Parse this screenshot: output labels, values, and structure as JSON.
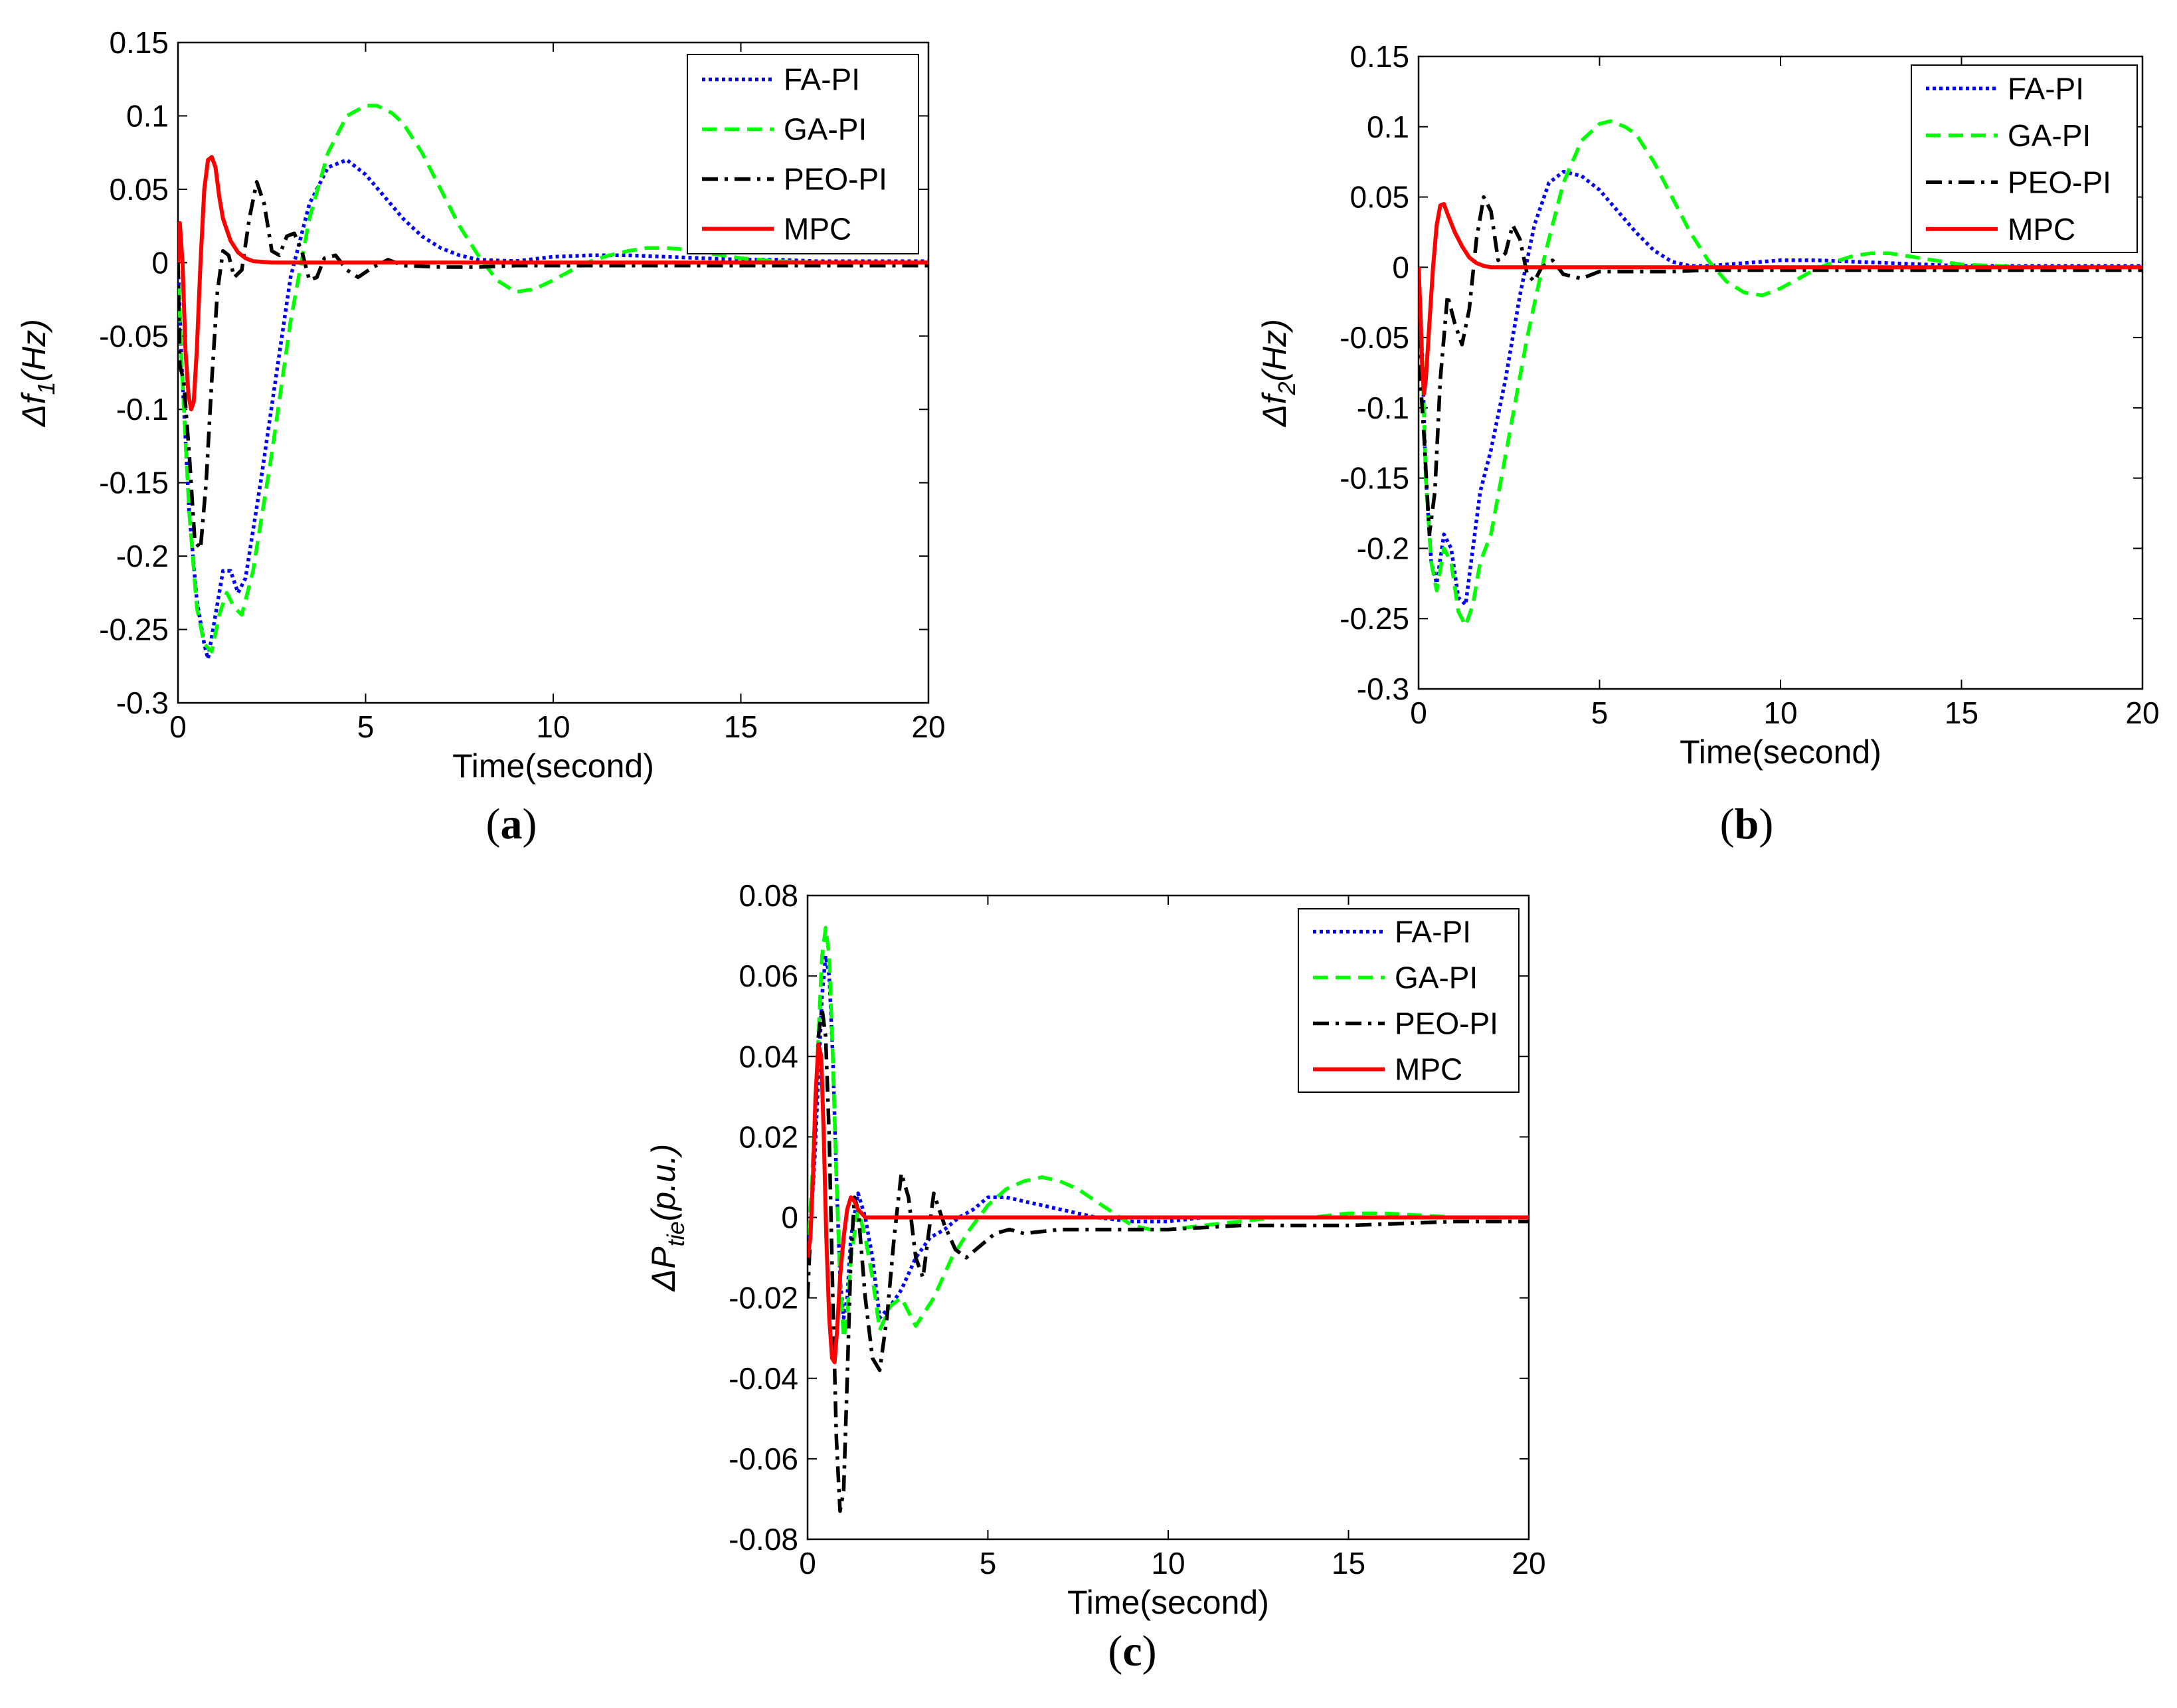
{
  "colors": {
    "FA-PI": "#0000ff",
    "GA-PI": "#00ff00",
    "PEO-PI": "#000000",
    "MPC": "#ff0000"
  },
  "chart_data": [
    {
      "type": "line",
      "panel": "(a)",
      "panel_letter": "a",
      "xlabel": "Time(second)",
      "ylabel_main": "Δf",
      "ylabel_sub": "1",
      "ylabel_rest": "(Hz)",
      "xlim": [
        0,
        20
      ],
      "ylim": [
        -0.3,
        0.15
      ],
      "xticks": [
        0,
        5,
        10,
        15,
        20
      ],
      "xtick_labels": [
        "0",
        "5",
        "10",
        "15",
        "20"
      ],
      "yticks": [
        -0.3,
        -0.25,
        -0.2,
        -0.15,
        -0.1,
        -0.05,
        0,
        0.05,
        0.1,
        0.15
      ],
      "ytick_labels": [
        "-0.3",
        "-0.25",
        "-0.2",
        "-0.15",
        "-0.1",
        "-0.05",
        "0",
        "0.05",
        "0.1",
        "0.15"
      ],
      "legend": [
        "FA-PI",
        "GA-PI",
        "PEO-PI",
        "MPC"
      ],
      "legend_loc": "top-right",
      "series": [
        {
          "name": "FA-PI",
          "style": "dotted",
          "x": [
            0,
            0.1,
            0.3,
            0.5,
            0.7,
            0.8,
            1.0,
            1.2,
            1.4,
            1.6,
            1.8,
            2.2,
            2.6,
            3.0,
            3.5,
            4.0,
            4.5,
            5.0,
            5.5,
            6.0,
            6.5,
            7.0,
            7.5,
            8.0,
            9.0,
            10.0,
            11.0,
            12.0,
            13.0,
            14.0,
            15.0,
            16.0,
            17.0,
            18.0,
            19.0,
            20.0
          ],
          "y": [
            0,
            -0.07,
            -0.17,
            -0.23,
            -0.26,
            -0.27,
            -0.24,
            -0.21,
            -0.21,
            -0.225,
            -0.215,
            -0.15,
            -0.08,
            -0.01,
            0.04,
            0.065,
            0.07,
            0.06,
            0.045,
            0.03,
            0.018,
            0.01,
            0.005,
            0.002,
            0.001,
            0.004,
            0.005,
            0.005,
            0.004,
            0.003,
            0.002,
            0.002,
            0.001,
            0.001,
            0.001,
            0.001
          ]
        },
        {
          "name": "GA-PI",
          "style": "dashed",
          "x": [
            0,
            0.1,
            0.3,
            0.5,
            0.7,
            0.9,
            1.1,
            1.3,
            1.5,
            1.7,
            2.0,
            2.5,
            3.0,
            3.5,
            4.0,
            4.5,
            5.0,
            5.3,
            5.7,
            6.0,
            6.5,
            7.0,
            7.5,
            8.0,
            8.5,
            9.0,
            9.5,
            10.0,
            10.5,
            11.0,
            11.5,
            12.0,
            12.5,
            13.0,
            13.5,
            14.0,
            14.5,
            15.0,
            16.0,
            17.0,
            18.0,
            19.0,
            20.0
          ],
          "y": [
            0,
            -0.07,
            -0.17,
            -0.235,
            -0.26,
            -0.265,
            -0.24,
            -0.225,
            -0.235,
            -0.24,
            -0.21,
            -0.13,
            -0.04,
            0.03,
            0.075,
            0.1,
            0.107,
            0.107,
            0.102,
            0.095,
            0.075,
            0.05,
            0.025,
            0.005,
            -0.012,
            -0.02,
            -0.018,
            -0.012,
            -0.005,
            0.001,
            0.005,
            0.008,
            0.01,
            0.01,
            0.009,
            0.007,
            0.005,
            0.003,
            0.001,
            0,
            0,
            0,
            0
          ]
        },
        {
          "name": "PEO-PI",
          "style": "dashdot",
          "x": [
            0,
            0.05,
            0.15,
            0.3,
            0.45,
            0.6,
            0.75,
            0.9,
            1.05,
            1.2,
            1.35,
            1.5,
            1.7,
            1.9,
            2.1,
            2.3,
            2.5,
            2.7,
            2.9,
            3.1,
            3.3,
            3.5,
            3.7,
            3.9,
            4.2,
            4.5,
            4.8,
            5.2,
            5.6,
            6.0,
            7.0,
            8.0,
            9.0,
            10.0,
            12.0,
            14.0,
            16.0,
            18.0,
            20.0
          ],
          "y": [
            0,
            -0.07,
            -0.08,
            -0.13,
            -0.19,
            -0.195,
            -0.15,
            -0.08,
            -0.02,
            0.008,
            0.005,
            -0.01,
            -0.005,
            0.03,
            0.055,
            0.04,
            0.008,
            0.005,
            0.018,
            0.02,
            0.008,
            -0.012,
            -0.01,
            0.003,
            0.005,
            -0.005,
            -0.01,
            -0.003,
            0.002,
            -0.002,
            -0.003,
            -0.003,
            -0.002,
            -0.002,
            -0.002,
            -0.002,
            -0.002,
            -0.002,
            -0.002
          ]
        },
        {
          "name": "MPC",
          "style": "solid",
          "x": [
            0,
            0.05,
            0.12,
            0.2,
            0.28,
            0.35,
            0.42,
            0.5,
            0.6,
            0.7,
            0.8,
            0.9,
            1.0,
            1.1,
            1.2,
            1.4,
            1.6,
            1.8,
            2.0,
            2.5,
            3.0,
            4.0,
            5.0,
            20.0
          ],
          "y": [
            0,
            0.027,
            0.0,
            -0.06,
            -0.09,
            -0.1,
            -0.095,
            -0.06,
            0.0,
            0.05,
            0.07,
            0.072,
            0.065,
            0.045,
            0.03,
            0.015,
            0.007,
            0.003,
            0.001,
            0,
            0,
            0,
            0,
            0
          ]
        }
      ]
    },
    {
      "type": "line",
      "panel": "(b)",
      "panel_letter": "b",
      "xlabel": "Time(second)",
      "ylabel_main": "Δf",
      "ylabel_sub": "2",
      "ylabel_rest": "(Hz)",
      "xlim": [
        0,
        20
      ],
      "ylim": [
        -0.3,
        0.15
      ],
      "xticks": [
        0,
        5,
        10,
        15,
        20
      ],
      "xtick_labels": [
        "0",
        "5",
        "10",
        "15",
        "20"
      ],
      "yticks": [
        -0.3,
        -0.25,
        -0.2,
        -0.15,
        -0.1,
        -0.05,
        0,
        0.05,
        0.1,
        0.15
      ],
      "ytick_labels": [
        "-0.3",
        "-0.25",
        "-0.2",
        "-0.15",
        "-0.1",
        "-0.05",
        "0",
        "0.05",
        "0.1",
        "0.15"
      ],
      "legend": [
        "FA-PI",
        "GA-PI",
        "PEO-PI",
        "MPC"
      ],
      "legend_loc": "top-right",
      "series": [
        {
          "name": "FA-PI",
          "style": "dotted",
          "x": [
            0,
            0.1,
            0.2,
            0.35,
            0.5,
            0.7,
            0.9,
            1.1,
            1.3,
            1.5,
            1.7,
            2.0,
            2.4,
            2.8,
            3.2,
            3.6,
            4.0,
            4.5,
            5.0,
            5.5,
            6.0,
            6.5,
            7.0,
            7.5,
            8.0,
            9.0,
            10.0,
            11.0,
            12.0,
            13.0,
            14.0,
            15.0,
            16.0,
            17.0,
            18.0,
            19.0,
            20.0
          ],
          "y": [
            0,
            -0.06,
            -0.15,
            -0.21,
            -0.225,
            -0.19,
            -0.2,
            -0.235,
            -0.24,
            -0.2,
            -0.16,
            -0.13,
            -0.08,
            -0.02,
            0.03,
            0.06,
            0.068,
            0.065,
            0.055,
            0.04,
            0.025,
            0.012,
            0.004,
            0.001,
            0.001,
            0.003,
            0.005,
            0.005,
            0.004,
            0.003,
            0.002,
            0.001,
            0.001,
            0.001,
            0.001,
            0.001,
            0.001
          ]
        },
        {
          "name": "GA-PI",
          "style": "dashed",
          "x": [
            0,
            0.1,
            0.2,
            0.35,
            0.5,
            0.7,
            0.9,
            1.1,
            1.3,
            1.5,
            1.7,
            2.0,
            2.5,
            3.0,
            3.5,
            4.0,
            4.5,
            5.0,
            5.3,
            5.7,
            6.0,
            6.5,
            7.0,
            7.5,
            8.0,
            8.5,
            9.0,
            9.5,
            10.0,
            10.5,
            11.0,
            11.5,
            12.0,
            12.5,
            13.0,
            13.5,
            14.0,
            14.5,
            15.0,
            16.0,
            17.0,
            18.0,
            19.0,
            20.0
          ],
          "y": [
            0,
            -0.06,
            -0.15,
            -0.21,
            -0.23,
            -0.2,
            -0.21,
            -0.245,
            -0.255,
            -0.24,
            -0.21,
            -0.19,
            -0.12,
            -0.05,
            0.01,
            0.06,
            0.09,
            0.102,
            0.104,
            0.1,
            0.095,
            0.075,
            0.05,
            0.025,
            0.005,
            -0.01,
            -0.018,
            -0.02,
            -0.015,
            -0.008,
            -0.001,
            0.004,
            0.008,
            0.01,
            0.01,
            0.008,
            0.006,
            0.004,
            0.002,
            0.001,
            0,
            0,
            0,
            0
          ]
        },
        {
          "name": "PEO-PI",
          "style": "dashdot",
          "x": [
            0,
            0.05,
            0.15,
            0.3,
            0.45,
            0.6,
            0.8,
            1.0,
            1.2,
            1.4,
            1.6,
            1.8,
            2.0,
            2.2,
            2.4,
            2.6,
            2.8,
            3.0,
            3.2,
            3.4,
            3.7,
            4.0,
            4.5,
            5.0,
            6.0,
            7.0,
            8.0,
            10.0,
            12.0,
            14.0,
            16.0,
            18.0,
            20.0
          ],
          "y": [
            0,
            -0.08,
            -0.12,
            -0.19,
            -0.16,
            -0.08,
            -0.02,
            -0.04,
            -0.055,
            -0.03,
            0.02,
            0.05,
            0.04,
            0.005,
            0.01,
            0.03,
            0.02,
            -0.005,
            -0.01,
            0.0,
            0.005,
            -0.005,
            -0.008,
            -0.003,
            -0.003,
            -0.003,
            -0.002,
            -0.002,
            -0.002,
            -0.002,
            -0.002,
            -0.002,
            -0.002
          ]
        },
        {
          "name": "MPC",
          "style": "solid",
          "x": [
            0,
            0.05,
            0.1,
            0.15,
            0.2,
            0.3,
            0.4,
            0.5,
            0.6,
            0.7,
            0.8,
            1.0,
            1.2,
            1.4,
            1.6,
            1.8,
            2.0,
            2.5,
            3.0,
            4.0,
            5.0,
            20.0
          ],
          "y": [
            0,
            -0.03,
            -0.07,
            -0.09,
            -0.08,
            -0.04,
            0.0,
            0.03,
            0.044,
            0.045,
            0.038,
            0.025,
            0.015,
            0.007,
            0.003,
            0.001,
            0.0,
            0,
            0,
            0,
            0,
            0
          ]
        }
      ]
    },
    {
      "type": "line",
      "panel": "(c)",
      "panel_letter": "c",
      "xlabel": "Time(second)",
      "ylabel_main": "ΔP",
      "ylabel_sub": "tie",
      "ylabel_rest": "(p.u.)",
      "xlim": [
        0,
        20
      ],
      "ylim": [
        -0.08,
        0.08
      ],
      "xticks": [
        0,
        5,
        10,
        15,
        20
      ],
      "xtick_labels": [
        "0",
        "5",
        "10",
        "15",
        "20"
      ],
      "yticks": [
        -0.08,
        -0.06,
        -0.04,
        -0.02,
        0,
        0.02,
        0.04,
        0.06,
        0.08
      ],
      "ytick_labels": [
        "-0.08",
        "-0.06",
        "-0.04",
        "-0.02",
        "0",
        "0.02",
        "0.04",
        "0.06",
        "0.08"
      ],
      "legend": [
        "FA-PI",
        "GA-PI",
        "PEO-PI",
        "MPC"
      ],
      "legend_loc": "top-right",
      "series": [
        {
          "name": "FA-PI",
          "style": "dotted",
          "x": [
            0,
            0.1,
            0.2,
            0.3,
            0.4,
            0.5,
            0.6,
            0.7,
            0.8,
            0.9,
            1.0,
            1.1,
            1.2,
            1.4,
            1.6,
            1.8,
            2.0,
            2.3,
            2.6,
            3.0,
            3.4,
            3.8,
            4.2,
            4.6,
            5.0,
            5.5,
            6.0,
            6.5,
            7.0,
            8.0,
            9.0,
            10.0,
            11.0,
            12.0,
            14.0,
            16.0,
            18.0,
            20.0
          ],
          "y": [
            -0.01,
            0.0,
            0.015,
            0.035,
            0.055,
            0.065,
            0.06,
            0.04,
            0.01,
            -0.015,
            -0.025,
            -0.02,
            -0.005,
            0.006,
            0.0,
            -0.01,
            -0.025,
            -0.022,
            -0.018,
            -0.01,
            -0.005,
            -0.003,
            0.0,
            0.002,
            0.005,
            0.005,
            0.004,
            0.003,
            0.002,
            0.0,
            -0.001,
            -0.001,
            0.0,
            0.0,
            0.0,
            0.0,
            0.0,
            0.0
          ]
        },
        {
          "name": "GA-PI",
          "style": "dashed",
          "x": [
            0,
            0.1,
            0.2,
            0.3,
            0.4,
            0.5,
            0.6,
            0.7,
            0.8,
            0.9,
            1.0,
            1.1,
            1.2,
            1.4,
            1.6,
            1.8,
            2.0,
            2.3,
            2.6,
            3.0,
            3.5,
            4.0,
            4.5,
            5.0,
            5.5,
            6.0,
            6.5,
            7.0,
            7.5,
            8.0,
            8.5,
            9.0,
            9.5,
            10.0,
            11.0,
            12.0,
            13.0,
            14.0,
            15.0,
            16.0,
            18.0,
            20.0
          ],
          "y": [
            -0.01,
            0.005,
            0.025,
            0.045,
            0.065,
            0.072,
            0.065,
            0.04,
            0.01,
            -0.015,
            -0.03,
            -0.025,
            -0.01,
            0.002,
            -0.005,
            -0.015,
            -0.028,
            -0.022,
            -0.02,
            -0.027,
            -0.02,
            -0.01,
            -0.003,
            0.003,
            0.007,
            0.009,
            0.01,
            0.009,
            0.007,
            0.004,
            0.001,
            -0.002,
            -0.003,
            -0.003,
            -0.002,
            -0.001,
            0.0,
            0.0,
            0.001,
            0.001,
            0.0,
            0.0
          ]
        },
        {
          "name": "PEO-PI",
          "style": "dashdot",
          "x": [
            0,
            0.1,
            0.2,
            0.3,
            0.4,
            0.5,
            0.6,
            0.7,
            0.8,
            0.9,
            1.0,
            1.1,
            1.2,
            1.3,
            1.4,
            1.6,
            1.8,
            2.0,
            2.2,
            2.4,
            2.6,
            2.8,
            3.0,
            3.2,
            3.5,
            3.8,
            4.1,
            4.4,
            4.8,
            5.2,
            5.6,
            6.0,
            7.0,
            8.0,
            10.0,
            12.0,
            15.0,
            18.0,
            20.0
          ],
          "y": [
            -0.02,
            0.0,
            0.02,
            0.045,
            0.052,
            0.045,
            0.02,
            -0.02,
            -0.055,
            -0.073,
            -0.068,
            -0.04,
            -0.01,
            0.005,
            0.002,
            -0.02,
            -0.035,
            -0.038,
            -0.025,
            -0.005,
            0.011,
            0.005,
            -0.01,
            -0.015,
            0.006,
            -0.002,
            -0.008,
            -0.01,
            -0.007,
            -0.004,
            -0.003,
            -0.004,
            -0.003,
            -0.003,
            -0.003,
            -0.002,
            -0.002,
            -0.001,
            -0.001
          ]
        },
        {
          "name": "MPC",
          "style": "solid",
          "x": [
            0,
            0.08,
            0.15,
            0.22,
            0.3,
            0.38,
            0.45,
            0.52,
            0.6,
            0.68,
            0.75,
            0.82,
            0.9,
            1.0,
            1.1,
            1.2,
            1.3,
            1.4,
            1.6,
            1.8,
            2.0,
            2.5,
            3.0,
            4.0,
            5.0,
            20.0
          ],
          "y": [
            -0.01,
            -0.005,
            0.01,
            0.03,
            0.043,
            0.04,
            0.02,
            -0.005,
            -0.025,
            -0.035,
            -0.036,
            -0.028,
            -0.015,
            -0.005,
            0.002,
            0.005,
            0.004,
            0.002,
            0.0,
            0.0,
            0.0,
            0,
            0,
            0,
            0,
            0
          ]
        }
      ]
    }
  ]
}
